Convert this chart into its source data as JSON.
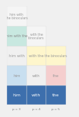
{
  "cells": [
    {
      "row": 0,
      "col": 0,
      "text": "him",
      "bg": "#3d6fad",
      "text_color": "#ffffff",
      "fontsize": 4.5
    },
    {
      "row": 0,
      "col": 1,
      "text": "with",
      "bg": "#3d6fad",
      "text_color": "#ffffff",
      "fontsize": 4.5
    },
    {
      "row": 0,
      "col": 2,
      "text": "the",
      "bg": "#3d6fad",
      "text_color": "#ffffff",
      "fontsize": 4.5
    },
    {
      "row": 1,
      "col": 0,
      "text": "him",
      "bg": "#c8dff0",
      "text_color": "#999999",
      "fontsize": 4.0
    },
    {
      "row": 1,
      "col": 1,
      "text": "with",
      "bg": "#f0f0f0",
      "text_color": "#999999",
      "fontsize": 4.0
    },
    {
      "row": 1,
      "col": 2,
      "text": "the",
      "bg": "#f5cece",
      "text_color": "#999999",
      "fontsize": 4.0
    },
    {
      "row": 2,
      "col": 0,
      "text": "him with",
      "bg": "#f0f0f0",
      "text_color": "#999999",
      "fontsize": 3.8
    },
    {
      "row": 2,
      "col": 1,
      "text": "with the",
      "bg": "#fef6cc",
      "text_color": "#999999",
      "fontsize": 3.8
    },
    {
      "row": 2,
      "col": 2,
      "text": "the binoculars",
      "bg": "#fef6cc",
      "text_color": "#999999",
      "fontsize": 3.3
    },
    {
      "row": 3,
      "col": 0,
      "text": "him with the",
      "bg": "#c8e8e0",
      "text_color": "#888888",
      "fontsize": 3.5
    },
    {
      "row": 3,
      "col": 1,
      "text": "with the\nbinoculars",
      "bg": "#f5f5f5",
      "text_color": "#999999",
      "fontsize": 3.3
    },
    {
      "row": 4,
      "col": 0,
      "text": "him with\nthe binoculars",
      "bg": "#f5f5f5",
      "text_color": "#999999",
      "fontsize": 3.3
    }
  ],
  "xlabels": [
    "p = 3",
    "p = 4",
    "p = 5"
  ],
  "n_visible_cols": 3,
  "n_rows": 5,
  "bg_color": "#f0f0f0",
  "cell_edge_color": "#dddddd",
  "cell_edge_width": 0.3
}
